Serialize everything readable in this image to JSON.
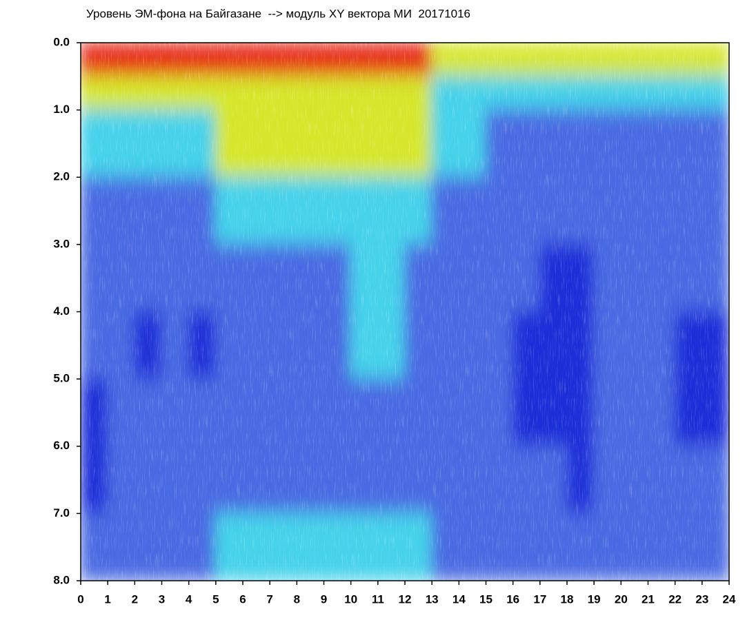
{
  "chart_data": {
    "type": "heatmap",
    "title": "Уровень ЭМ-фона на Байгазане  --> модуль XY вектора МИ  20171016",
    "xlim": [
      0,
      24
    ],
    "ylim": [
      0,
      8
    ],
    "y_inverted": true,
    "xticks": [
      0,
      1,
      2,
      3,
      4,
      5,
      6,
      7,
      8,
      9,
      10,
      11,
      12,
      13,
      14,
      15,
      16,
      17,
      18,
      19,
      20,
      21,
      22,
      23,
      24
    ],
    "yticks": [
      {
        "value": 0,
        "label": "0.0"
      },
      {
        "value": 1,
        "label": "1.0"
      },
      {
        "value": 2,
        "label": "2.0"
      },
      {
        "value": 3,
        "label": "3.0"
      },
      {
        "value": 4,
        "label": "4.0"
      },
      {
        "value": 5,
        "label": "5.0"
      },
      {
        "value": 6,
        "label": "6.0"
      },
      {
        "value": 7,
        "label": "7.0"
      },
      {
        "value": 8,
        "label": "8.0"
      }
    ],
    "xbins": [
      0,
      1,
      2,
      3,
      4,
      5,
      6,
      7,
      8,
      9,
      10,
      11,
      12,
      13,
      14,
      15,
      16,
      17,
      18,
      19,
      20,
      21,
      22,
      23,
      24
    ],
    "ybins": [
      0,
      0.5,
      1,
      2,
      3,
      4,
      5,
      6,
      7,
      8
    ],
    "colors": [
      "#1c2fd8",
      "#4a6ae2",
      "#45d2ea",
      "#d6e62a",
      "#e62a14"
    ],
    "z": [
      [
        4,
        4,
        4,
        4,
        4,
        4,
        4,
        4,
        4,
        4,
        4,
        4,
        4,
        3,
        3,
        3,
        3,
        3,
        3,
        3,
        3,
        3,
        3,
        3
      ],
      [
        3,
        3,
        3,
        3,
        3,
        3,
        3,
        3,
        3,
        3,
        3,
        3,
        3,
        2,
        2,
        2,
        2,
        2,
        2,
        2,
        2,
        2,
        2,
        2
      ],
      [
        2,
        2,
        2,
        2,
        2,
        3,
        3,
        3,
        3,
        3,
        3,
        3,
        3,
        2,
        2,
        1,
        1,
        1,
        1,
        1,
        1,
        1,
        1,
        1
      ],
      [
        1,
        1,
        1,
        1,
        1,
        2,
        2,
        2,
        2,
        2,
        2,
        2,
        2,
        1,
        1,
        1,
        1,
        1,
        1,
        1,
        1,
        1,
        1,
        1
      ],
      [
        1,
        1,
        1,
        1,
        1,
        1,
        1,
        1,
        1,
        1,
        2,
        2,
        1,
        1,
        1,
        1,
        1,
        0,
        0,
        1,
        1,
        1,
        1,
        1
      ],
      [
        1,
        1,
        0,
        1,
        0,
        1,
        1,
        1,
        1,
        1,
        2,
        2,
        1,
        1,
        1,
        1,
        0,
        0,
        0,
        1,
        1,
        1,
        0,
        0
      ],
      [
        0,
        1,
        1,
        1,
        1,
        1,
        1,
        1,
        1,
        1,
        1,
        1,
        1,
        1,
        1,
        1,
        0,
        0,
        0,
        1,
        1,
        1,
        0,
        0
      ],
      [
        0,
        1,
        1,
        1,
        1,
        1,
        1,
        1,
        1,
        1,
        1,
        1,
        1,
        1,
        1,
        1,
        1,
        1,
        0,
        1,
        1,
        1,
        1,
        1
      ],
      [
        1,
        1,
        1,
        1,
        1,
        2,
        2,
        2,
        2,
        2,
        2,
        2,
        2,
        1,
        1,
        1,
        1,
        1,
        1,
        1,
        1,
        1,
        1,
        1
      ]
    ]
  }
}
